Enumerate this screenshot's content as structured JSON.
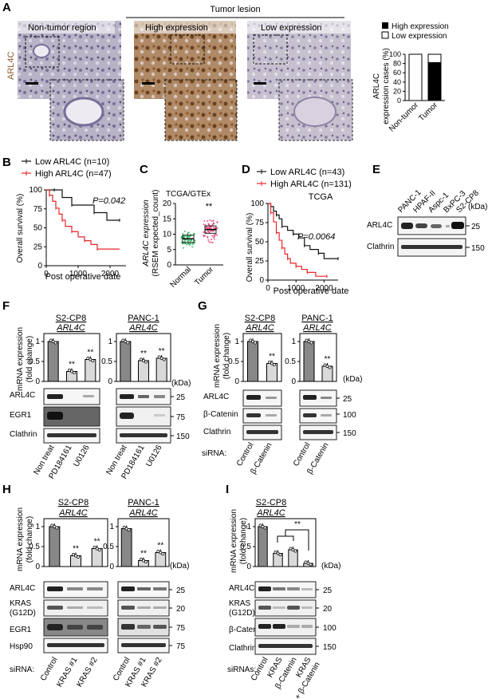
{
  "panels": {
    "A": "A",
    "B": "B",
    "C": "C",
    "D": "D",
    "E": "E",
    "F": "F",
    "G": "G",
    "H": "H",
    "I": "I"
  },
  "panel_a": {
    "tumor_lesion": "Tumor lesion",
    "non_tumor_region": "Non-tumor region",
    "high_expression": "High expression",
    "low_expression": "Low expression",
    "stain_label": "ARL4C",
    "legend_high": "High expression",
    "legend_low": "Low expression",
    "ylabel_line1": "ARL4C",
    "ylabel_line2": "expression cases (%)"
  },
  "panel_b": {
    "legend_low": "Low ARL4C (n=10)",
    "legend_high": "High ARL4C (n=47)",
    "pvalue": "P=0.042",
    "ylabel": "Overall survival (%)",
    "xlabel": "Post operative date"
  },
  "panel_c": {
    "title": "TCGA/GTEx",
    "ylabel_line1": "ARL4C expression",
    "ylabel_line2": "(RSEM expected_count)",
    "sig": "**"
  },
  "panel_d": {
    "legend_low": "Low ARL4C (n=43)",
    "legend_high": "High ARL4C (n=131)",
    "title": "TCGA",
    "pvalue": "P=0.0064",
    "ylabel": "Overall survival (%)",
    "xlabel": "Post operative date"
  },
  "panel_e": {
    "lanes": [
      "PANC-1",
      "HPAF-II",
      "Aspc-1",
      "BxPC-3",
      "S2-CP8"
    ],
    "rows": [
      "ARL4C",
      "Clathrin"
    ],
    "kda_label": "(kDa)",
    "kda": [
      "25",
      "150"
    ]
  },
  "panel_f": {
    "cell1": "S2-CP8",
    "cell2": "PANC-1",
    "gene": "ARL4C",
    "ylabel_line1": "mRNA expression",
    "ylabel_line2": "(fold change)",
    "rows": [
      "ARL4C",
      "EGR1",
      "Clathrin"
    ],
    "kda_label": "(kDa)",
    "kda": [
      "25",
      "75",
      "150"
    ],
    "lanes": [
      "Non treat",
      "PD184161",
      "U0126"
    ],
    "sig": "**"
  },
  "panel_g": {
    "cell1": "S2-CP8",
    "cell2": "PANC-1",
    "gene": "ARL4C",
    "ylabel_line1": "mRNA expression",
    "ylabel_line2": "(fold change)",
    "rows": [
      "ARL4C",
      "β-Catenin",
      "Clathrin"
    ],
    "kda_label": "(kDa)",
    "kda": [
      "25",
      "100",
      "150"
    ],
    "sirna": "siRNA:",
    "lanes": [
      "Control",
      "β-Catenin"
    ],
    "sig": "**"
  },
  "panel_h": {
    "cell1": "S2-CP8",
    "cell2": "PANC-1",
    "gene": "ARL4C",
    "ylabel_line1": "mRNA expression",
    "ylabel_line2": "(fold change)",
    "rows": [
      "ARL4C",
      "KRAS",
      "(G12D)",
      "EGR1",
      "Hsp90"
    ],
    "kda_label": "(kDa)",
    "kda": [
      "25",
      "20",
      "75",
      "75"
    ],
    "sirna": "siRNA:",
    "lanes": [
      "Control",
      "KRAS #1",
      "KRAS #2"
    ],
    "sig": "**"
  },
  "panel_i": {
    "cell": "S2-CP8",
    "gene": "ARL4C",
    "ylabel_line1": "mRNA expression",
    "ylabel_line2": "(fold change)",
    "rows": [
      "ARL4C",
      "KRAS",
      "(G12D)",
      "β-Catenin",
      "Clathrin"
    ],
    "kda_label": "(kDa)",
    "kda": [
      "25",
      "20",
      "100",
      "150"
    ],
    "sirna": "siRNAs:",
    "lanes": [
      "Control",
      "KRAS",
      "β-Catenin",
      "KRAS",
      "+ β-Catenin"
    ],
    "sig": "**"
  },
  "chart_data": [
    {
      "id": "A",
      "type": "bar",
      "categories": [
        "Non-tumor",
        "Tumor"
      ],
      "series": [
        {
          "name": "High expression",
          "values": [
            0,
            82
          ]
        },
        {
          "name": "Low expression",
          "values": [
            100,
            18
          ]
        }
      ],
      "ylim": [
        0,
        100
      ],
      "yticks": [
        0,
        20,
        40,
        60,
        80,
        100
      ],
      "stacked": true
    },
    {
      "id": "B",
      "type": "line",
      "xlim": [
        0,
        2500
      ],
      "ylim": [
        0,
        100
      ],
      "xticks": [
        0,
        1000,
        2000
      ],
      "yticks": [
        0,
        25,
        50,
        75,
        100
      ],
      "series": [
        {
          "name": "Low ARL4C (n=10)",
          "color": "#111111",
          "x": [
            0,
            250,
            500,
            800,
            1100,
            1500,
            1900,
            2300
          ],
          "y": [
            100,
            100,
            90,
            80,
            80,
            70,
            60,
            60
          ]
        },
        {
          "name": "High ARL4C (n=47)",
          "color": "#e8262a",
          "x": [
            0,
            100,
            200,
            300,
            400,
            500,
            600,
            800,
            1000,
            1200,
            1400,
            1600,
            2300
          ],
          "y": [
            100,
            93,
            85,
            76,
            68,
            60,
            52,
            45,
            38,
            33,
            28,
            22,
            22
          ]
        }
      ]
    },
    {
      "id": "C",
      "type": "scatter",
      "categories": [
        "Normal",
        "Tumor"
      ],
      "ylim": [
        0,
        20
      ],
      "yticks": [
        0,
        5,
        10,
        15,
        20
      ],
      "medians": [
        8.5,
        11.5
      ],
      "colors": [
        "#22aa55",
        "#e0306a"
      ]
    },
    {
      "id": "D",
      "type": "line",
      "xlim": [
        0,
        2500
      ],
      "ylim": [
        0,
        100
      ],
      "xticks": [
        0,
        1000,
        2000
      ],
      "yticks": [
        0,
        25,
        50,
        75,
        100
      ],
      "series": [
        {
          "name": "Low ARL4C (n=43)",
          "color": "#111111",
          "x": [
            0,
            100,
            200,
            300,
            400,
            500,
            700,
            900,
            1100,
            1300,
            1500,
            1800,
            2000,
            2500
          ],
          "y": [
            100,
            96,
            90,
            85,
            80,
            70,
            65,
            60,
            55,
            45,
            40,
            35,
            28,
            28
          ]
        },
        {
          "name": "High ARL4C (n=131)",
          "color": "#e8262a",
          "x": [
            0,
            100,
            200,
            300,
            400,
            500,
            600,
            700,
            800,
            1000,
            1200,
            1400,
            1700,
            2100
          ],
          "y": [
            100,
            88,
            76,
            62,
            52,
            42,
            34,
            28,
            22,
            18,
            14,
            10,
            5,
            5
          ]
        }
      ]
    },
    {
      "id": "F1",
      "type": "bar",
      "categories": [
        "Non treat",
        "PD184161",
        "U0126"
      ],
      "values": [
        1.0,
        0.25,
        0.55
      ],
      "ylim": [
        0,
        1.2
      ],
      "yticks": [
        0,
        0.5,
        1
      ]
    },
    {
      "id": "F2",
      "type": "bar",
      "categories": [
        "Non treat",
        "PD184161",
        "U0126"
      ],
      "values": [
        1.0,
        0.52,
        0.58
      ],
      "ylim": [
        0,
        1.2
      ],
      "yticks": [
        0,
        0.5,
        1
      ]
    },
    {
      "id": "G1",
      "type": "bar",
      "categories": [
        "Control",
        "β-Catenin"
      ],
      "values": [
        1.0,
        0.45
      ],
      "ylim": [
        0,
        1.2
      ],
      "yticks": [
        0,
        0.5,
        1
      ]
    },
    {
      "id": "G2",
      "type": "bar",
      "categories": [
        "Control",
        "β-Catenin"
      ],
      "values": [
        1.0,
        0.38
      ],
      "ylim": [
        0,
        1.2
      ],
      "yticks": [
        0,
        0.5,
        1
      ]
    },
    {
      "id": "H1",
      "type": "bar",
      "categories": [
        "Control",
        "KRAS #1",
        "KRAS #2"
      ],
      "values": [
        1.0,
        0.27,
        0.45
      ],
      "ylim": [
        0,
        1.2
      ],
      "yticks": [
        0,
        0.5,
        1
      ]
    },
    {
      "id": "H2",
      "type": "bar",
      "categories": [
        "Control",
        "KRAS #1",
        "KRAS #2"
      ],
      "values": [
        0.95,
        0.15,
        0.35
      ],
      "ylim": [
        0,
        1.2
      ],
      "yticks": [
        0,
        0.5,
        1
      ]
    },
    {
      "id": "I",
      "type": "bar",
      "categories": [
        "Control",
        "KRAS",
        "β-Catenin",
        "KRAS + β-Catenin"
      ],
      "values": [
        1.0,
        0.33,
        0.42,
        0.08
      ],
      "ylim": [
        0,
        1.2
      ],
      "yticks": [
        0,
        0.5,
        1
      ]
    }
  ]
}
